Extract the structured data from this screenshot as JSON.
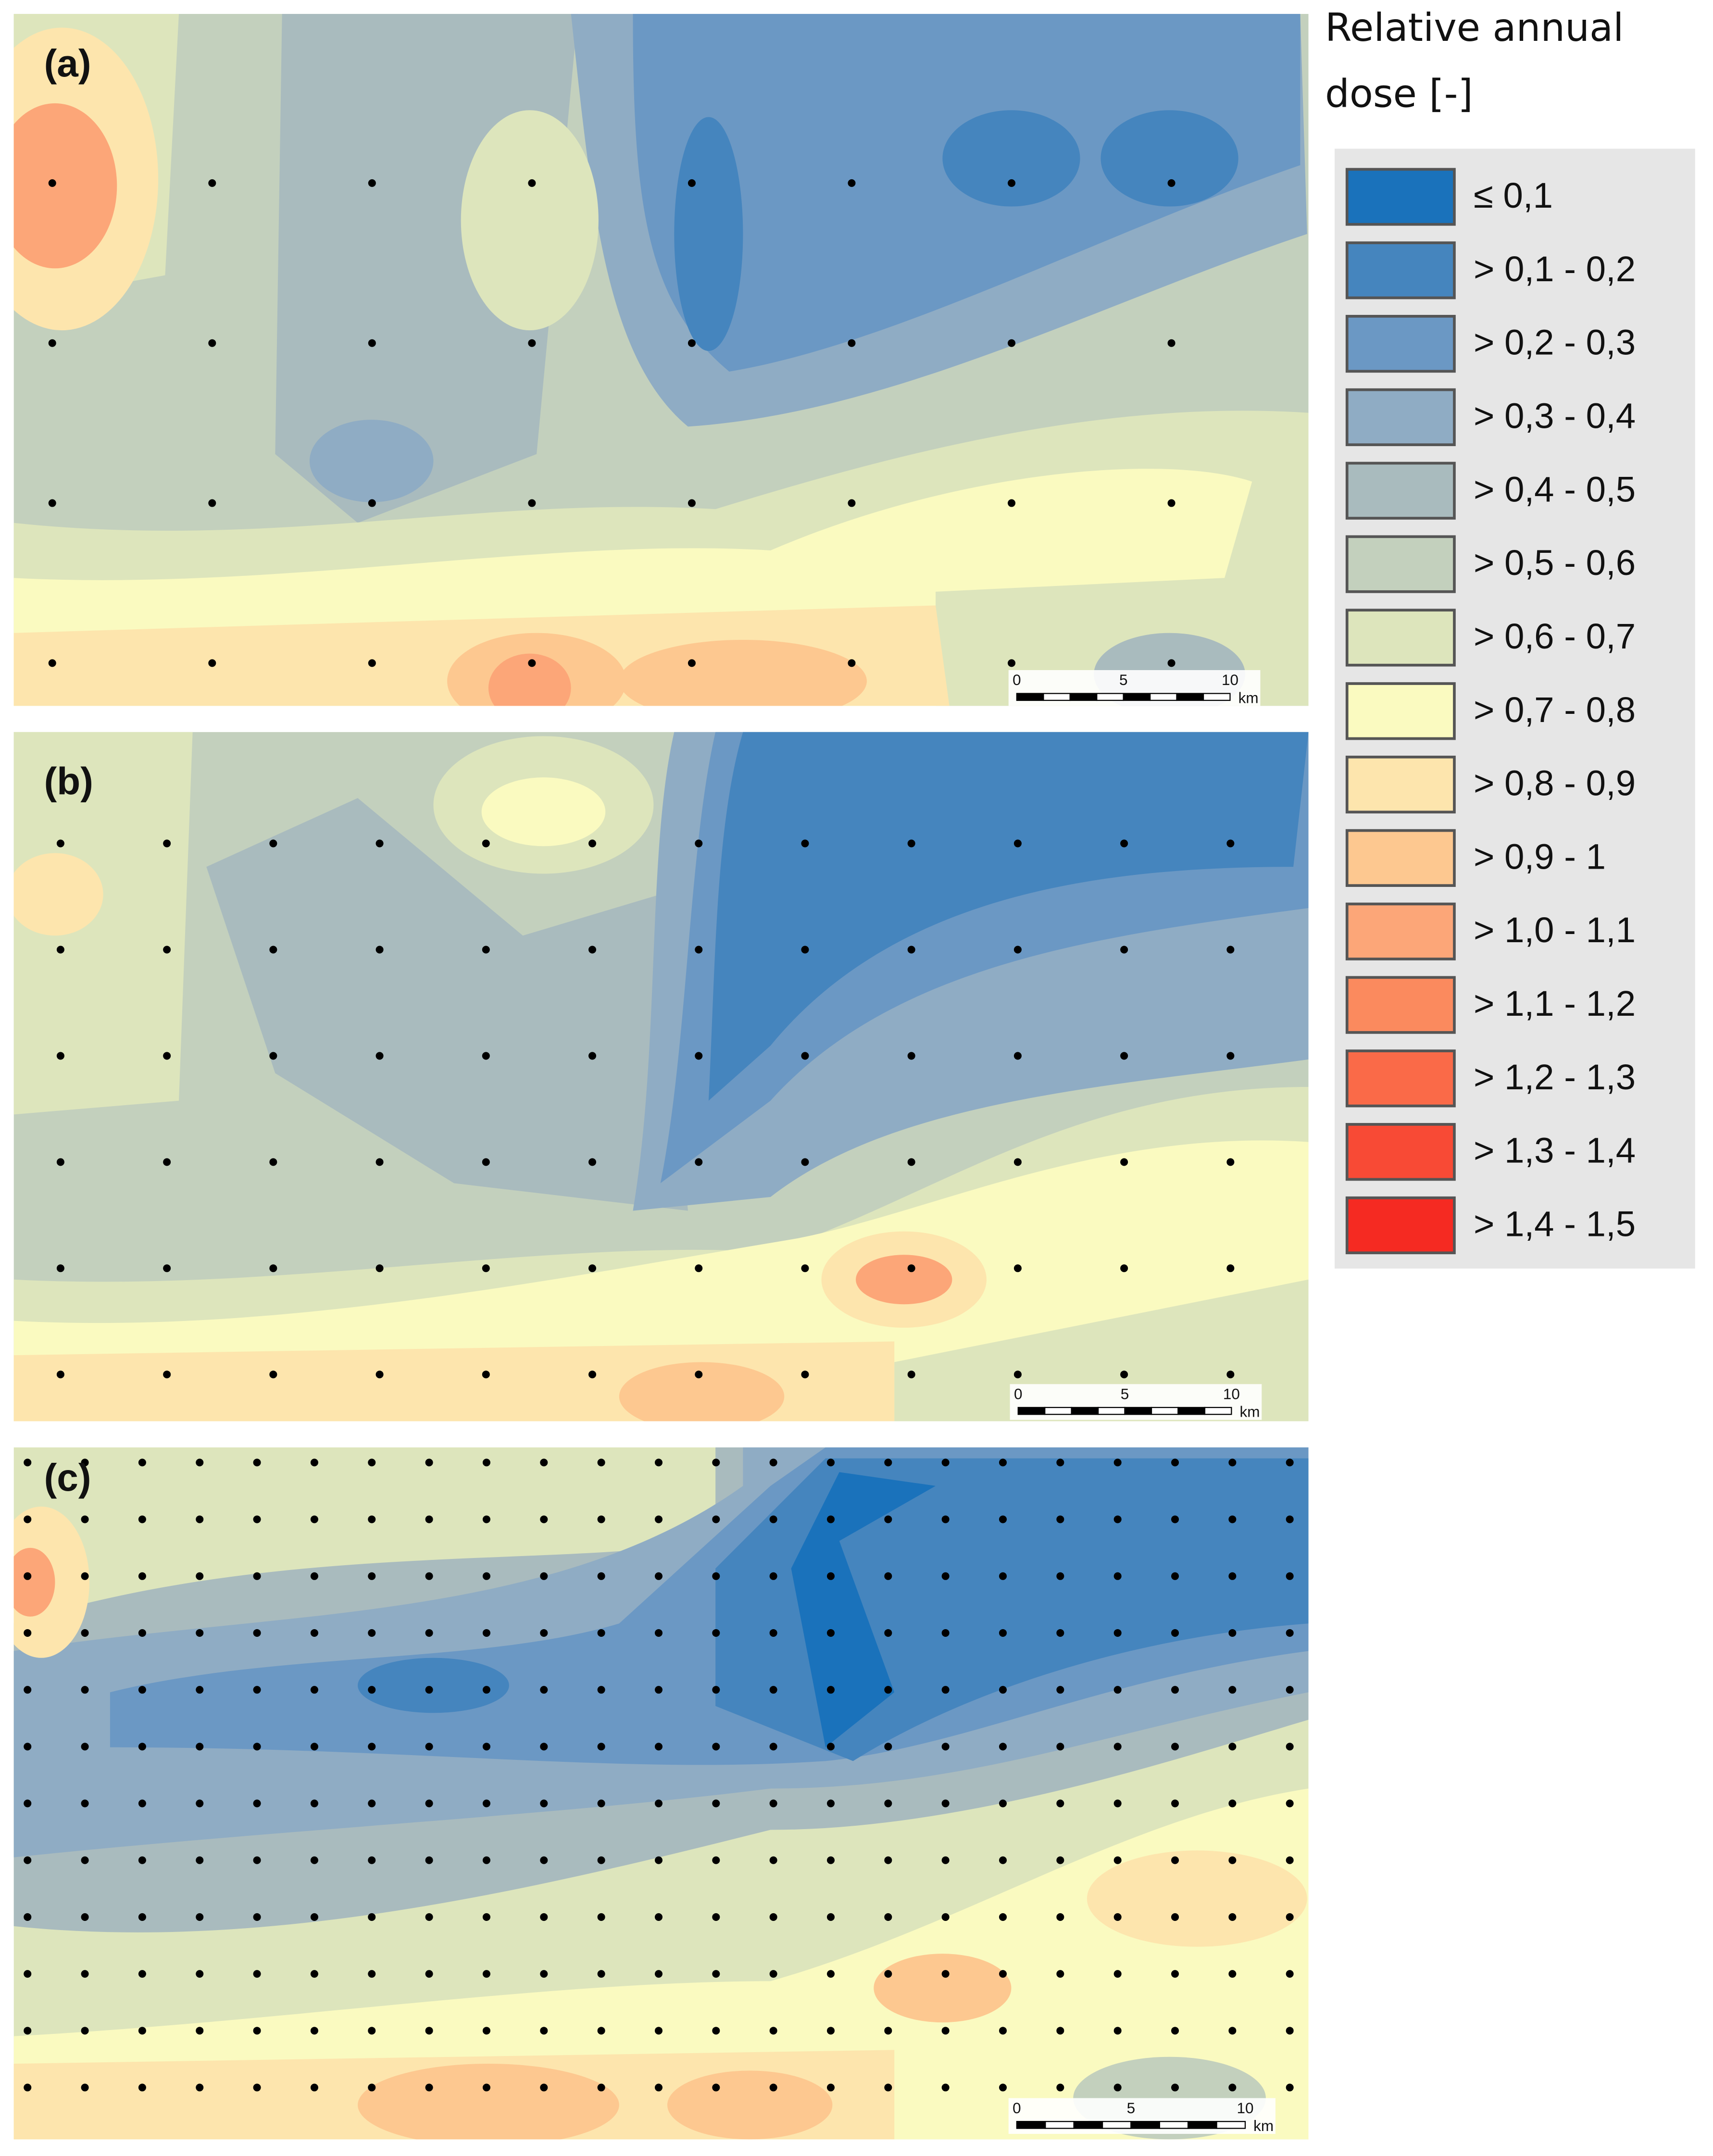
{
  "legend": {
    "title_lines": [
      "Relative annual",
      "dose [-]"
    ],
    "classes": [
      {
        "label": "≤ 0,1",
        "color": "#1a72bb"
      },
      {
        "label": "> 0,1 - 0,2",
        "color": "#4585be"
      },
      {
        "label": "> 0,2 - 0,3",
        "color": "#6b98c4"
      },
      {
        "label": "> 0,3 - 0,4",
        "color": "#8facc4"
      },
      {
        "label": "> 0,4 - 0,5",
        "color": "#a9bbbe"
      },
      {
        "label": "> 0,5 - 0,6",
        "color": "#c3d0bd"
      },
      {
        "label": "> 0,6 - 0,7",
        "color": "#dde5bc"
      },
      {
        "label": "> 0,7 - 0,8",
        "color": "#fafac0"
      },
      {
        "label": "> 0,8 - 0,9",
        "color": "#fde5ad"
      },
      {
        "label": "> 0,9 - 1",
        "color": "#fdc890"
      },
      {
        "label": "> 1,0 - 1,1",
        "color": "#fca678"
      },
      {
        "label": "> 1,1 - 1,2",
        "color": "#fb8a5e"
      },
      {
        "label": "> 1,2 - 1,3",
        "color": "#fa6a48"
      },
      {
        "label": "> 1,3 - 1,4",
        "color": "#f84a35"
      },
      {
        "label": "> 1,4 - 1,5",
        "color": "#f52a22"
      }
    ]
  },
  "panels": [
    {
      "label": "(a)",
      "scale_bar": {
        "ticks": [
          "0",
          "5",
          "10"
        ],
        "unit": "km"
      }
    },
    {
      "label": "(b)",
      "scale_bar": {
        "ticks": [
          "0",
          "5",
          "10"
        ],
        "unit": "km"
      }
    },
    {
      "label": "(c)",
      "scale_bar": {
        "ticks": [
          "0",
          "5",
          "10"
        ],
        "unit": "km"
      }
    }
  ]
}
